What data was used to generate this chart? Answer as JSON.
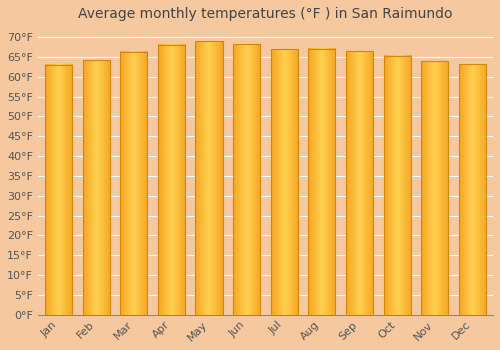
{
  "title": "Average monthly temperatures (°F ) in San Raimundo",
  "months": [
    "Jan",
    "Feb",
    "Mar",
    "Apr",
    "May",
    "Jun",
    "Jul",
    "Aug",
    "Sep",
    "Oct",
    "Nov",
    "Dec"
  ],
  "values": [
    63.0,
    64.2,
    66.3,
    68.1,
    68.9,
    68.2,
    67.0,
    67.1,
    66.4,
    65.3,
    64.0,
    63.1
  ],
  "bar_color_center": "#FFD050",
  "bar_color_edge": "#F5A623",
  "bar_edge_color": "#D4860A",
  "background_color": "#F5C8A0",
  "plot_bg_color": "#F5C8A0",
  "grid_color": "#FFFFFF",
  "ytick_labels": [
    "0°F",
    "5°F",
    "10°F",
    "15°F",
    "20°F",
    "25°F",
    "30°F",
    "35°F",
    "40°F",
    "45°F",
    "50°F",
    "55°F",
    "60°F",
    "65°F",
    "70°F"
  ],
  "ytick_values": [
    0,
    5,
    10,
    15,
    20,
    25,
    30,
    35,
    40,
    45,
    50,
    55,
    60,
    65,
    70
  ],
  "ylim": [
    0,
    72
  ],
  "title_fontsize": 10,
  "tick_fontsize": 8,
  "font_family": "DejaVu Sans"
}
